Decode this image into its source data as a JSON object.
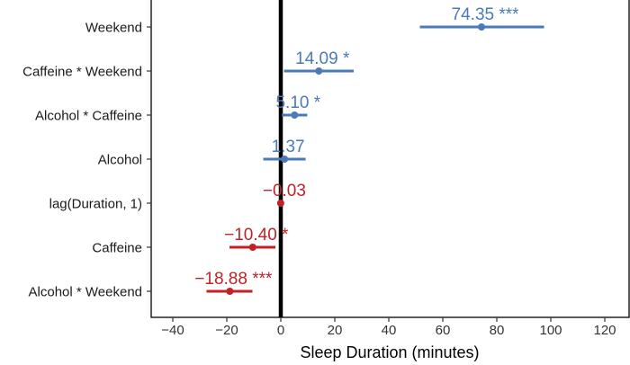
{
  "chart_data": {
    "type": "scatter",
    "title": "",
    "xlabel": "Sleep Duration (minutes)",
    "ylabel": "",
    "xlim": [
      -48,
      129
    ],
    "xticks": [
      -40,
      -20,
      0,
      20,
      40,
      60,
      80,
      100,
      120
    ],
    "xtick_labels": [
      "−40",
      "−20",
      "0",
      "20",
      "40",
      "60",
      "80",
      "100",
      "120"
    ],
    "grid": false,
    "legend": "none",
    "colors": {
      "positive": "#4a7ab8",
      "negative": "#c42026",
      "zero_line": "#000000"
    },
    "points": [
      {
        "term": "Weekend",
        "estimate": 74.35,
        "lower": 51.5,
        "upper": 97.5,
        "label": "74.35 ***",
        "sign": "positive"
      },
      {
        "term": "Caffeine * Weekend",
        "estimate": 14.09,
        "lower": 1.2,
        "upper": 27.0,
        "label": "14.09 *",
        "sign": "positive"
      },
      {
        "term": "Alcohol * Caffeine",
        "estimate": 5.1,
        "lower": 0.4,
        "upper": 9.8,
        "label": "5.10 *",
        "sign": "positive"
      },
      {
        "term": "Alcohol",
        "estimate": 1.37,
        "lower": -6.5,
        "upper": 9.2,
        "label": "1.37",
        "sign": "positive"
      },
      {
        "term": "lag(Duration, 1)",
        "estimate": -0.03,
        "lower": -0.6,
        "upper": 0.5,
        "label": "−0.03",
        "sign": "negative"
      },
      {
        "term": "Caffeine",
        "estimate": -10.4,
        "lower": -19.0,
        "upper": -2.0,
        "label": "−10.40 *",
        "sign": "negative"
      },
      {
        "term": "Alcohol * Weekend",
        "estimate": -18.88,
        "lower": -27.5,
        "upper": -10.5,
        "label": "−18.88 ***",
        "sign": "negative"
      }
    ]
  }
}
